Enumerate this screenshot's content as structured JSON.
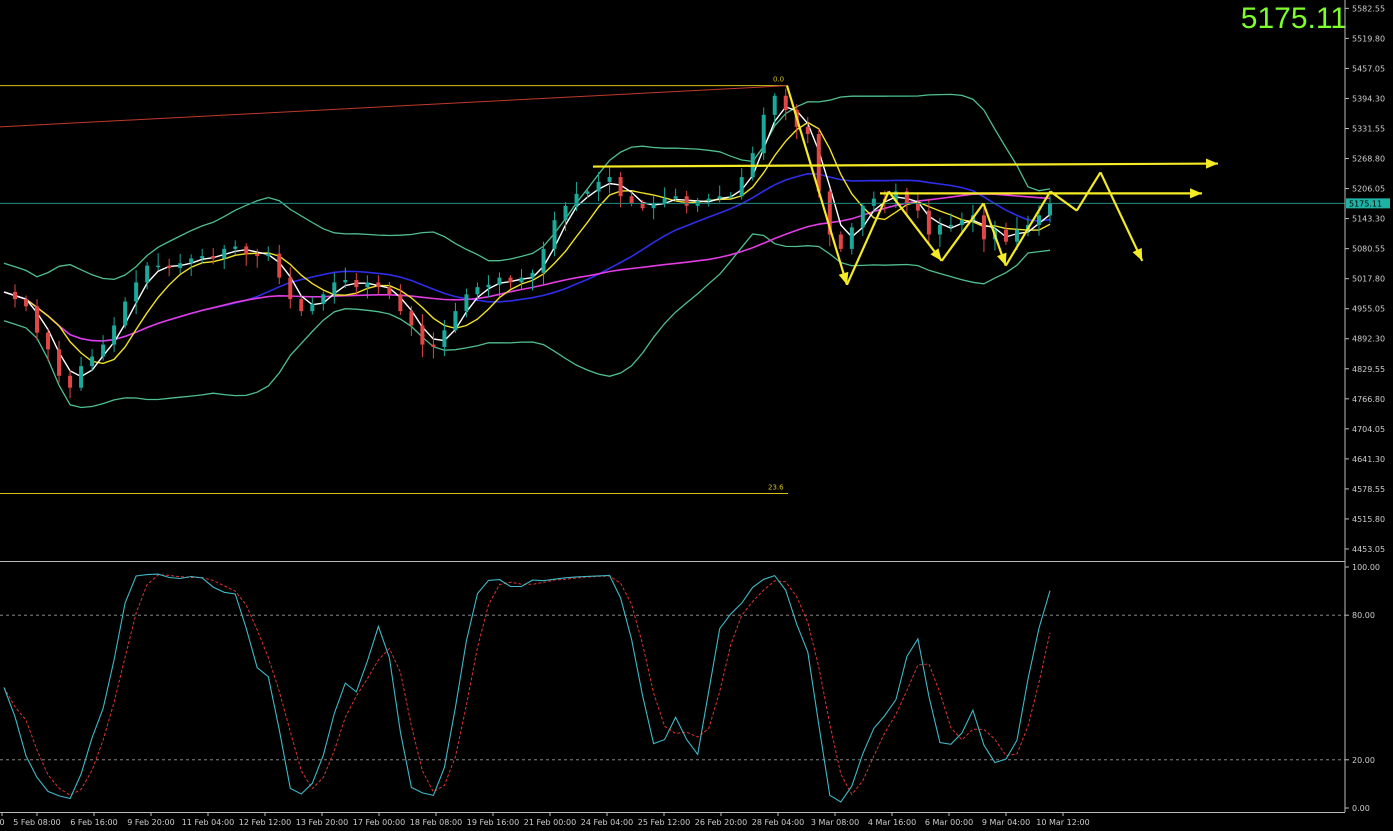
{
  "price_readout": "5175.11",
  "chart_data": {
    "type": "candlestick",
    "main_panel": {
      "y_ticks": [
        "5582.55",
        "5519.80",
        "5457.05",
        "5394.30",
        "5331.55",
        "5268.80",
        "5206.05",
        "5143.30",
        "5080.55",
        "5017.80",
        "4955.05",
        "4892.30",
        "4829.55",
        "4766.80",
        "4704.05",
        "4641.30",
        "4578.55",
        "4515.80",
        "4453.05"
      ],
      "ylim": [
        4430,
        5600
      ],
      "current_price": 5175.11,
      "current_price_label": "5175.11",
      "fib_levels": [
        {
          "label": "0.0",
          "value": 5421
        },
        {
          "label": "23.6",
          "value": 4569
        }
      ],
      "trendline": {
        "from": 5335,
        "to": 5421,
        "color": "#c0392b"
      },
      "horizontal_levels": [
        5252,
        5196
      ],
      "indicators": [
        "Bollinger Bands",
        "Moving Average (white)",
        "Moving Average (yellow)",
        "Moving Average (blue)",
        "Moving Average (magenta)"
      ]
    },
    "oscillator_panel": {
      "type": "stochastic",
      "y_ticks": [
        "100.00",
        "80.00",
        "20.00",
        "0.00"
      ],
      "levels": [
        80,
        20
      ],
      "ylim": [
        0,
        100
      ]
    },
    "x_tick_labels": [
      "0",
      "5 Feb 08:00",
      "6 Feb 16:00",
      "9 Feb 20:00",
      "11 Feb 04:00",
      "12 Feb 12:00",
      "13 Feb 20:00",
      "17 Feb 00:00",
      "18 Feb 08:00",
      "19 Feb 16:00",
      "21 Feb 00:00",
      "24 Feb 04:00",
      "25 Feb 12:00",
      "26 Feb 20:00",
      "28 Feb 04:00",
      "3 Mar 08:00",
      "4 Mar 16:00",
      "6 Mar 00:00",
      "9 Mar 04:00",
      "10 Mar 12:00"
    ],
    "close_path": [
      4990,
      4975,
      4960,
      4905,
      4870,
      4815,
      4790,
      4835,
      4855,
      4880,
      4920,
      4970,
      5010,
      5045,
      5045,
      5040,
      5050,
      5060,
      5065,
      5060,
      5080,
      5085,
      5070,
      5065,
      5070,
      5020,
      4975,
      4950,
      4965,
      4985,
      5010,
      5015,
      5000,
      5010,
      5000,
      4985,
      4950,
      4920,
      4880,
      4875,
      4910,
      4950,
      4985,
      5000,
      5005,
      5020,
      5010,
      5020,
      5030,
      5080,
      5140,
      5170,
      5195,
      5200,
      5220,
      5230,
      5190,
      5175,
      5165,
      5175,
      5185,
      5190,
      5170,
      5180,
      5185,
      5190,
      5190,
      5230,
      5280,
      5360,
      5400,
      5370,
      5335,
      5320,
      5200,
      5110,
      5080,
      5125,
      5170,
      5185,
      5180,
      5200,
      5175,
      5160,
      5110,
      5130,
      5130,
      5140,
      5150,
      5100,
      5120,
      5095,
      5120,
      5130,
      5150,
      5175
    ],
    "forecast_zigzag": [
      [
        0.565,
        5421
      ],
      [
        0.608,
        5005
      ],
      [
        0.638,
        5200
      ],
      [
        0.676,
        5055
      ],
      [
        0.706,
        5175
      ],
      [
        0.722,
        5045
      ],
      [
        0.754,
        5200
      ],
      [
        0.773,
        5160
      ],
      [
        0.79,
        5240
      ],
      [
        0.82,
        5055
      ]
    ]
  }
}
